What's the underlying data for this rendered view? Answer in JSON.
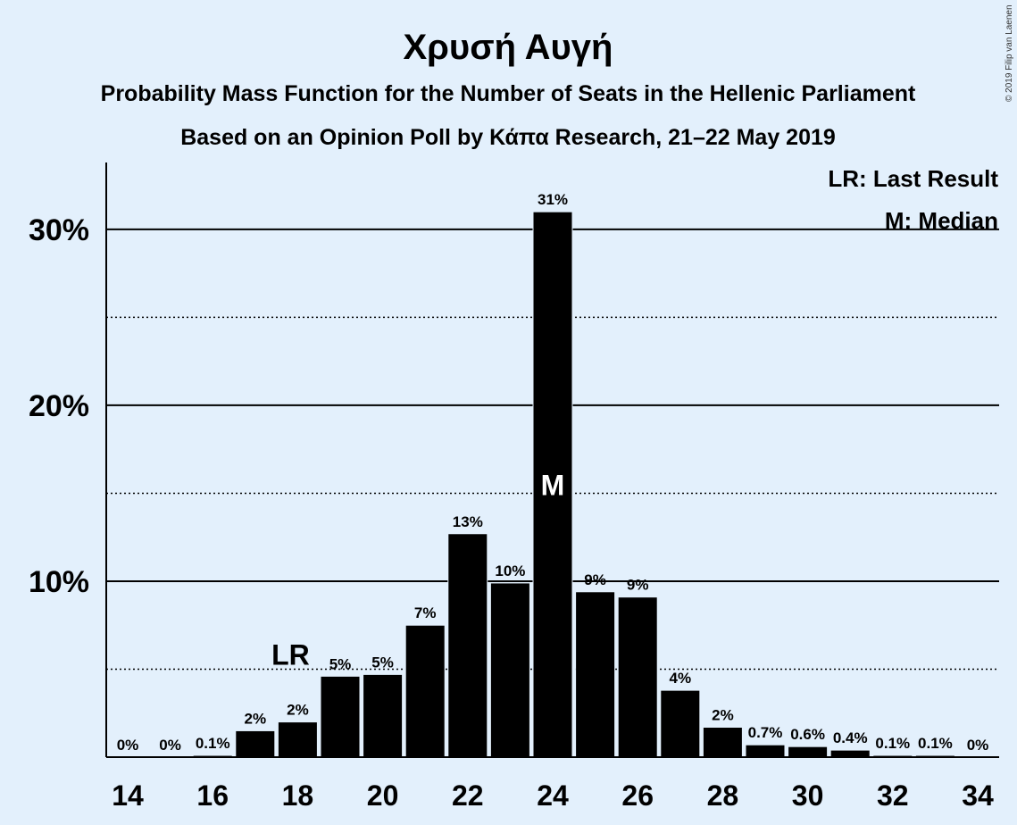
{
  "title": "Χρυσή Αυγή",
  "subtitle1": "Probability Mass Function for the Number of Seats in the Hellenic Parliament",
  "subtitle2": "Based on an Opinion Poll by Κάπα Research, 21–22 May 2019",
  "copyright": "© 2019 Filip van Laenen",
  "legend": {
    "last_result": "LR: Last Result",
    "median": "M: Median"
  },
  "markers": {
    "last_result_label": "LR",
    "median_label": "M"
  },
  "colors": {
    "background": "#e3f0fc",
    "bar": "#000000",
    "median_text": "#ffffff"
  },
  "chart_data": {
    "type": "bar",
    "x": [
      14,
      15,
      16,
      17,
      18,
      19,
      20,
      21,
      22,
      23,
      24,
      25,
      26,
      27,
      28,
      29,
      30,
      31,
      32,
      33,
      34
    ],
    "values": [
      0,
      0,
      0.1,
      1.5,
      2.0,
      4.6,
      4.7,
      7.5,
      12.7,
      9.9,
      31.0,
      9.4,
      9.1,
      3.8,
      1.7,
      0.7,
      0.6,
      0.4,
      0.1,
      0.1,
      0
    ],
    "value_labels": [
      "0%",
      "0%",
      "0.1%",
      "2%",
      "2%",
      "5%",
      "5%",
      "7%",
      "13%",
      "10%",
      "31%",
      "9%",
      "9%",
      "4%",
      "2%",
      "0.7%",
      "0.6%",
      "0.4%",
      "0.1%",
      "0.1%",
      "0%"
    ],
    "x_tick_labels": [
      "14",
      "16",
      "18",
      "20",
      "22",
      "24",
      "26",
      "28",
      "30",
      "32",
      "34"
    ],
    "y_tick_labels": [
      "10%",
      "20%",
      "30%"
    ],
    "y_ticks": [
      10,
      20,
      30
    ],
    "y_minor_ticks": [
      5,
      15,
      25
    ],
    "ylim": [
      0,
      33.8
    ],
    "xlabel": "",
    "ylabel": "",
    "last_result_seats": 18,
    "median_seats": 24,
    "grid": true,
    "legend_position": "top-right"
  }
}
